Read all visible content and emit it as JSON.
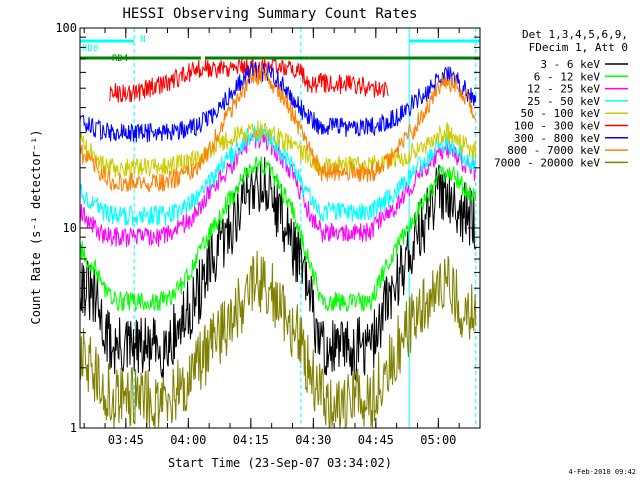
{
  "chart_data": {
    "type": "line",
    "title": "HESSI Observing Summary Count Rates",
    "xlabel": "Start Time (23-Sep-07 03:34:02)",
    "ylabel": "Count Rate (s⁻¹ detector⁻¹)",
    "yscale": "log",
    "ylim": [
      1,
      100
    ],
    "xlim": [
      "03:34",
      "05:10"
    ],
    "x_ticks": [
      "03:45",
      "04:00",
      "04:15",
      "04:30",
      "04:45",
      "05:00"
    ],
    "y_ticks": [
      "1",
      "10",
      "100"
    ],
    "legend_header": [
      "Det 1,3,4,5,6,9,",
      "FDecim 1, Att 0"
    ],
    "legend_placement": "right",
    "grid": false,
    "timestamp": "4-Feb-2010 09:42",
    "series": [
      {
        "name": "3 - 6 keV",
        "color": "#000000",
        "x": [
          "03:34",
          "03:38",
          "03:40",
          "03:42",
          "03:54",
          "03:58",
          "04:02",
          "04:06",
          "04:10",
          "04:14",
          "04:16",
          "04:19",
          "04:22",
          "04:26",
          "04:28",
          "04:32",
          "04:44",
          "04:46",
          "04:50",
          "04:54",
          "04:58",
          "05:00",
          "05:02",
          "05:04",
          "05:06",
          "05:09"
        ],
        "y": [
          5.5,
          4.2,
          3.0,
          2.5,
          2.5,
          3.2,
          4.5,
          6.8,
          10,
          15,
          17,
          16,
          12,
          7.5,
          5.5,
          2.5,
          2.5,
          3.5,
          5.5,
          8.5,
          12,
          15,
          16,
          14,
          12,
          10.5
        ]
      },
      {
        "name": "6 - 12 keV",
        "color": "#00ff00",
        "x": [
          "03:34",
          "03:38",
          "03:40",
          "03:42",
          "03:54",
          "03:58",
          "04:02",
          "04:06",
          "04:10",
          "04:14",
          "04:16",
          "04:19",
          "04:22",
          "04:26",
          "04:28",
          "04:32",
          "04:44",
          "04:46",
          "04:50",
          "04:54",
          "04:58",
          "05:00",
          "05:02",
          "05:04",
          "05:06",
          "05:09"
        ],
        "y": [
          8,
          6,
          5,
          4.3,
          4.3,
          5,
          7,
          10,
          14,
          19,
          21,
          20,
          16,
          11,
          8,
          4.3,
          4.3,
          5.5,
          8,
          11,
          15,
          18,
          19,
          18,
          16,
          14
        ]
      },
      {
        "name": "12 - 25 keV",
        "color": "#ff00ff",
        "x": [
          "03:34",
          "03:38",
          "03:40",
          "03:42",
          "03:54",
          "03:58",
          "04:02",
          "04:06",
          "04:10",
          "04:14",
          "04:16",
          "04:19",
          "04:22",
          "04:26",
          "04:28",
          "04:32",
          "04:44",
          "04:46",
          "04:50",
          "04:54",
          "04:58",
          "05:00",
          "05:02",
          "05:04",
          "05:06",
          "05:09"
        ],
        "y": [
          12,
          10,
          9,
          9,
          9,
          10,
          12,
          16,
          20,
          26,
          28,
          27,
          23,
          17,
          13,
          9.5,
          9.5,
          11,
          13,
          17,
          21,
          24,
          25,
          23,
          21,
          19
        ]
      },
      {
        "name": "25 - 50 keV",
        "color": "#00ffff",
        "x": [
          "03:34",
          "03:38",
          "03:40",
          "03:42",
          "03:54",
          "03:58",
          "04:02",
          "04:06",
          "04:10",
          "04:14",
          "04:16",
          "04:19",
          "04:22",
          "04:26",
          "04:28",
          "04:32",
          "04:44",
          "04:46",
          "04:50",
          "04:54",
          "04:58",
          "05:00",
          "05:02",
          "05:04",
          "05:06",
          "05:09"
        ],
        "y": [
          15,
          13,
          12,
          11.5,
          11.5,
          12,
          14,
          18,
          23,
          28,
          30,
          29,
          25,
          19,
          15,
          12,
          12,
          13,
          15,
          19,
          23,
          26,
          27,
          25,
          23,
          21
        ]
      },
      {
        "name": "50 - 100 keV",
        "color": "#cccc00",
        "x": [
          "03:34",
          "03:38",
          "03:40",
          "03:42",
          "03:54",
          "03:58",
          "04:02",
          "04:06",
          "04:10",
          "04:14",
          "04:16",
          "04:19",
          "04:22",
          "04:26",
          "04:28",
          "04:32",
          "04:44",
          "04:46",
          "04:50",
          "04:54",
          "04:58",
          "05:00",
          "05:02",
          "05:04",
          "05:06",
          "05:09"
        ],
        "y": [
          28,
          22,
          20,
          20,
          20,
          21,
          22,
          25,
          28,
          30,
          31,
          30,
          28,
          25,
          23,
          20.5,
          20.5,
          21,
          22,
          24,
          27,
          29,
          30,
          28,
          26,
          24
        ]
      },
      {
        "name": "100 - 300 keV",
        "color": "#ff0000",
        "x": [
          "03:41",
          "03:48",
          "03:56",
          "04:02",
          "04:04",
          "04:27",
          "04:28",
          "04:32",
          "04:40",
          "04:48"
        ],
        "y": [
          47,
          48,
          54,
          63,
          63,
          63,
          53,
          53,
          52,
          48
        ]
      },
      {
        "name": "300 - 800 keV",
        "color": "#0000ff",
        "x": [
          "03:34",
          "03:38",
          "03:40",
          "03:42",
          "03:54",
          "03:58",
          "04:02",
          "04:06",
          "04:10",
          "04:14",
          "04:16",
          "04:19",
          "04:22",
          "04:26",
          "04:28",
          "04:32",
          "04:44",
          "04:46",
          "04:50",
          "04:54",
          "04:58",
          "05:00",
          "05:02",
          "05:04",
          "05:06",
          "05:09"
        ],
        "y": [
          34,
          31,
          30,
          30,
          30,
          31,
          32,
          37,
          47,
          58,
          61,
          60,
          53,
          43,
          37,
          32,
          32,
          33,
          36,
          42,
          50,
          56,
          58,
          56,
          50,
          43
        ]
      },
      {
        "name": "800 - 7000 keV",
        "color": "#ff8000",
        "x": [
          "03:34",
          "03:38",
          "03:40",
          "03:42",
          "03:54",
          "03:58",
          "04:02",
          "04:06",
          "04:10",
          "04:14",
          "04:16",
          "04:19",
          "04:22",
          "04:26",
          "04:28",
          "04:32",
          "04:44",
          "04:46",
          "04:50",
          "04:54",
          "04:58",
          "05:00",
          "05:02",
          "05:04",
          "05:06",
          "05:09"
        ],
        "y": [
          24,
          20,
          18,
          17,
          17,
          18,
          20,
          27,
          38,
          52,
          58,
          57,
          48,
          34,
          27,
          19,
          19,
          20,
          24,
          31,
          42,
          52,
          54,
          52,
          46,
          38
        ]
      },
      {
        "name": "7000 - 20000 keV",
        "color": "#808000",
        "x": [
          "03:34",
          "03:38",
          "03:40",
          "03:42",
          "03:54",
          "03:58",
          "04:02",
          "04:06",
          "04:10",
          "04:14",
          "04:16",
          "04:19",
          "04:22",
          "04:26",
          "04:28",
          "04:32",
          "04:44",
          "04:46",
          "04:50",
          "04:54",
          "04:58",
          "05:00",
          "05:02",
          "05:04",
          "05:06",
          "05:09"
        ],
        "y": [
          2.5,
          1.8,
          1.5,
          1.4,
          1.4,
          1.6,
          2.0,
          2.6,
          3.5,
          4.5,
          5.5,
          5.2,
          4.0,
          3.0,
          2.2,
          1.4,
          1.4,
          1.8,
          2.5,
          3.5,
          4.5,
          5.5,
          5.5,
          4.5,
          4.0,
          3.6
        ]
      }
    ],
    "flag_bars": [
      {
        "name": "RD0",
        "color": "#00ffff",
        "segments": [
          [
            "03:34",
            "03:47"
          ],
          [
            "04:53",
            "05:10"
          ]
        ]
      },
      {
        "name": "RD4",
        "color": "#008000",
        "segments": [
          [
            "03:34",
            "03:41"
          ],
          [
            "03:40",
            "04:03"
          ],
          [
            "04:04",
            "04:29"
          ],
          [
            "04:29",
            "04:49"
          ],
          [
            "04:49",
            "05:10"
          ]
        ]
      }
    ],
    "markers": [
      {
        "label": "N",
        "time": "03:47",
        "color": "#00ffff",
        "style": "dashed"
      },
      {
        "time": "04:27",
        "color": "#00ffff",
        "style": "dashed"
      },
      {
        "time": "05:09",
        "color": "#00ffff",
        "style": "dashed"
      }
    ],
    "intervals": [
      {
        "color": "#00ffff",
        "range": [
          "03:34",
          "03:34"
        ]
      },
      {
        "color": "#00ffff",
        "range": [
          "04:53",
          "04:53"
        ]
      }
    ]
  }
}
